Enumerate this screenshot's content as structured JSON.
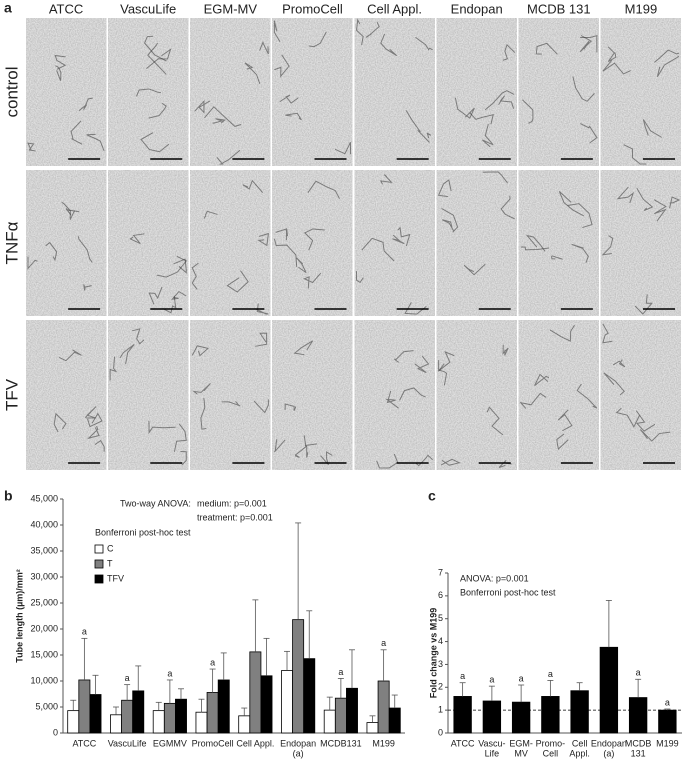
{
  "panel_a": {
    "label": "a",
    "columns": [
      "ATCC",
      "VascuLife",
      "EGM-MV",
      "PromoCell",
      "Cell Appl.",
      "Endopan",
      "MCDB 131",
      "M199"
    ],
    "rows": [
      "control",
      "TNFα",
      "TFV"
    ]
  },
  "chart_data": [
    {
      "type": "bar",
      "panel": "b",
      "ylabel": "Tube length (µm)/mm²",
      "annotations": [
        "Two-way ANOVA:",
        "medium: p=0.001",
        "treatment: p=0.001",
        "Bonferroni post-hoc test"
      ],
      "categories": [
        [
          "ATCC"
        ],
        [
          "VascuLife"
        ],
        [
          "EGMMV"
        ],
        [
          "PromoCell"
        ],
        [
          "Cell Appl."
        ],
        [
          "Endopan",
          "(a)"
        ],
        [
          "MCDB131"
        ],
        [
          "M199"
        ]
      ],
      "series": [
        {
          "name": "C",
          "color": "#ffffff",
          "values": [
            4300,
            3500,
            4300,
            4000,
            3300,
            12000,
            4400,
            2000
          ],
          "errors": [
            2000,
            1500,
            1600,
            2500,
            1500,
            3700,
            2500,
            1300
          ],
          "sig_labels": [
            null,
            null,
            null,
            null,
            null,
            null,
            null,
            null
          ]
        },
        {
          "name": "T",
          "color": "#808080",
          "values": [
            10200,
            6300,
            5700,
            7800,
            15600,
            21800,
            6700,
            10000
          ],
          "errors": [
            8000,
            3000,
            4500,
            4500,
            10000,
            18600,
            3800,
            6000
          ],
          "sig_labels": [
            "a",
            "a",
            "a",
            "a",
            null,
            null,
            "a",
            "a"
          ]
        },
        {
          "name": "TFV",
          "color": "#000000",
          "values": [
            7400,
            8100,
            6500,
            10200,
            11000,
            14300,
            8600,
            4800
          ],
          "errors": [
            3700,
            4800,
            2000,
            5200,
            7200,
            9200,
            7400,
            2500
          ],
          "sig_labels": [
            null,
            null,
            null,
            null,
            null,
            null,
            null,
            null
          ]
        }
      ],
      "ylim": [
        0,
        45000
      ],
      "yticks": [
        0,
        {
          "value": 5000,
          "label": "5,000"
        },
        {
          "value": 10000,
          "label": "10,000"
        },
        {
          "value": 15000,
          "label": "15,000"
        },
        {
          "value": 20000,
          "label": "20,000"
        },
        {
          "value": 25000,
          "label": "25,000"
        },
        {
          "value": 30000,
          "label": "30,000"
        },
        {
          "value": 35000,
          "label": "35,000"
        },
        {
          "value": 40000,
          "label": "40,000"
        },
        {
          "value": 45000,
          "label": "45,000"
        }
      ],
      "grid": false
    },
    {
      "type": "bar",
      "panel": "c",
      "ylabel": "Fold change vs M199",
      "annotations": [
        "ANOVA: p=0.001",
        "Bonferroni post-hoc test"
      ],
      "categories": [
        [
          "ATCC"
        ],
        [
          "Vascu-",
          "Life"
        ],
        [
          "EGM-",
          "MV"
        ],
        [
          "Promo-",
          "Cell"
        ],
        [
          "Cell",
          "Appl."
        ],
        [
          "Endopan",
          "(a)"
        ],
        [
          "MCDB",
          "131"
        ],
        [
          "M199"
        ]
      ],
      "series": [
        {
          "name": null,
          "color": "#000000",
          "values": [
            1.6,
            1.4,
            1.35,
            1.6,
            1.85,
            3.75,
            1.55,
            1.0
          ],
          "errors": [
            0.6,
            0.65,
            0.75,
            0.7,
            0.35,
            2.05,
            0.8,
            0.05
          ],
          "sig_labels": [
            "a",
            "a",
            "a",
            "a",
            null,
            null,
            "a",
            "a"
          ]
        }
      ],
      "hline": 1,
      "ylim": [
        0,
        7
      ],
      "yticks": [
        0,
        1,
        2,
        3,
        4,
        5,
        6,
        7
      ],
      "grid": false
    }
  ]
}
